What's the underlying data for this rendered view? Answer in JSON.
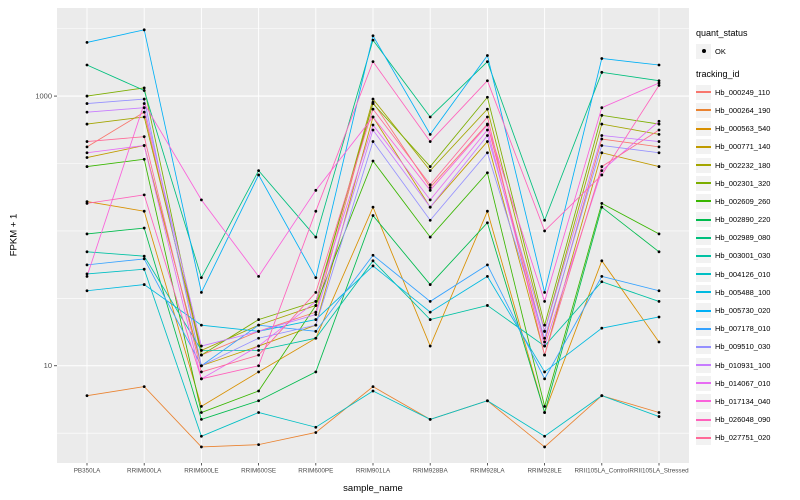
{
  "figure": {
    "y_axis_title": "FPKM + 1",
    "x_axis_title": "sample_name"
  },
  "legend": {
    "quant_status_title": "quant_status",
    "quant_status_value": "OK",
    "tracking_title": "tracking_id"
  },
  "chart_data": {
    "type": "line",
    "title": "",
    "xlabel": "sample_name",
    "ylabel": "FPKM + 1",
    "y_scale": "log10",
    "ylim": [
      1.9,
      4500
    ],
    "legend_position": "right",
    "panel_background": "#EBEBEB",
    "grid_color": "#FFFFFF",
    "point_color": "#000000",
    "tick_color": "#333333",
    "tick_label_color": "#4D4D4D",
    "y_ticks": [
      {
        "value": 1000,
        "label": "1000"
      },
      {
        "value": 10,
        "label": "10"
      }
    ],
    "categories": [
      "PB350LA",
      "RRIM600LA",
      "RRIM600LE",
      "RRIM600SE",
      "RRIM600PE",
      "RRIM901LA",
      "RRIM928BA",
      "RRIM928LA",
      "RRIM928LE",
      "RRII105LA_Control",
      "RRII105LA_Stressed"
    ],
    "series": [
      {
        "name": "Hb_000249_110",
        "color": "#F8766D",
        "values": [
          420,
          760,
          12,
          18,
          25,
          900,
          210,
          620,
          15,
          480,
          420
        ]
      },
      {
        "name": "Hb_000264_190",
        "color": "#EA8331",
        "values": [
          6,
          7,
          2.5,
          2.6,
          3.2,
          7,
          4,
          5.5,
          2.5,
          6,
          4.5
        ]
      },
      {
        "name": "Hb_000563_540",
        "color": "#D89000",
        "values": [
          165,
          140,
          5,
          9,
          16,
          150,
          14,
          140,
          4.5,
          60,
          15
        ]
      },
      {
        "name": "Hb_000771_140",
        "color": "#C09B00",
        "values": [
          350,
          430,
          10,
          14,
          20,
          700,
          150,
          460,
          12,
          380,
          300
        ]
      },
      {
        "name": "Hb_002232_180",
        "color": "#A3A500",
        "values": [
          620,
          700,
          13,
          20,
          28,
          950,
          280,
          800,
          18,
          620,
          520
        ]
      },
      {
        "name": "Hb_002301_320",
        "color": "#7CAE00",
        "values": [
          1000,
          1150,
          12,
          22,
          30,
          880,
          300,
          980,
          20,
          720,
          620
        ]
      },
      {
        "name": "Hb_002609_260",
        "color": "#39B600",
        "values": [
          300,
          340,
          4.5,
          6.5,
          28,
          330,
          90,
          270,
          5,
          160,
          95
        ]
      },
      {
        "name": "Hb_002890_220",
        "color": "#00BB4E",
        "values": [
          95,
          105,
          4,
          5.5,
          9,
          130,
          40,
          115,
          4.5,
          150,
          70
        ]
      },
      {
        "name": "Hb_002989_080",
        "color": "#00BF7D",
        "values": [
          1700,
          1100,
          45,
          280,
          90,
          2600,
          700,
          1800,
          120,
          1500,
          1300
        ]
      },
      {
        "name": "Hb_003001_030",
        "color": "#00C1A3",
        "values": [
          70,
          65,
          13,
          13,
          16,
          60,
          22,
          28,
          14,
          42,
          30
        ]
      },
      {
        "name": "Hb_004126_010",
        "color": "#00BFC4",
        "values": [
          48,
          52,
          3,
          4.5,
          3.5,
          6.5,
          4,
          5.5,
          3,
          6,
          4.2
        ]
      },
      {
        "name": "Hb_005488_100",
        "color": "#00BAE0",
        "values": [
          36,
          40,
          20,
          18,
          22,
          55,
          25,
          46,
          9,
          19,
          23
        ]
      },
      {
        "name": "Hb_005730_020",
        "color": "#00B0F6",
        "values": [
          2500,
          3100,
          35,
          260,
          45,
          2800,
          520,
          2000,
          35,
          1900,
          1700
        ]
      },
      {
        "name": "Hb_007178_010",
        "color": "#35A2FF",
        "values": [
          56,
          62,
          10,
          20,
          18,
          66,
          30,
          56,
          8,
          46,
          36
        ]
      },
      {
        "name": "Hb_009510_030",
        "color": "#9590FF",
        "values": [
          880,
          950,
          10,
          16,
          20,
          460,
          120,
          380,
          16,
          430,
          380
        ]
      },
      {
        "name": "Hb_010931_100",
        "color": "#C77CFF",
        "values": [
          760,
          820,
          14,
          18,
          24,
          560,
          150,
          510,
          18,
          510,
          460
        ]
      },
      {
        "name": "Hb_014067_010",
        "color": "#E76BF3",
        "values": [
          380,
          430,
          8,
          14,
          30,
          610,
          170,
          560,
          14,
          280,
          650
        ]
      },
      {
        "name": "Hb_017134_040",
        "color": "#FA62DB",
        "values": [
          46,
          880,
          170,
          46,
          200,
          700,
          200,
          610,
          30,
          820,
          1250
        ]
      },
      {
        "name": "Hb_026048_090",
        "color": "#FF62BC",
        "values": [
          160,
          185,
          8,
          10,
          140,
          1800,
          460,
          1300,
          100,
          260,
          1200
        ]
      },
      {
        "name": "Hb_027751_020",
        "color": "#FF6A98",
        "values": [
          460,
          500,
          9,
          12,
          35,
          800,
          220,
          700,
          12,
          300,
          560
        ]
      }
    ]
  }
}
